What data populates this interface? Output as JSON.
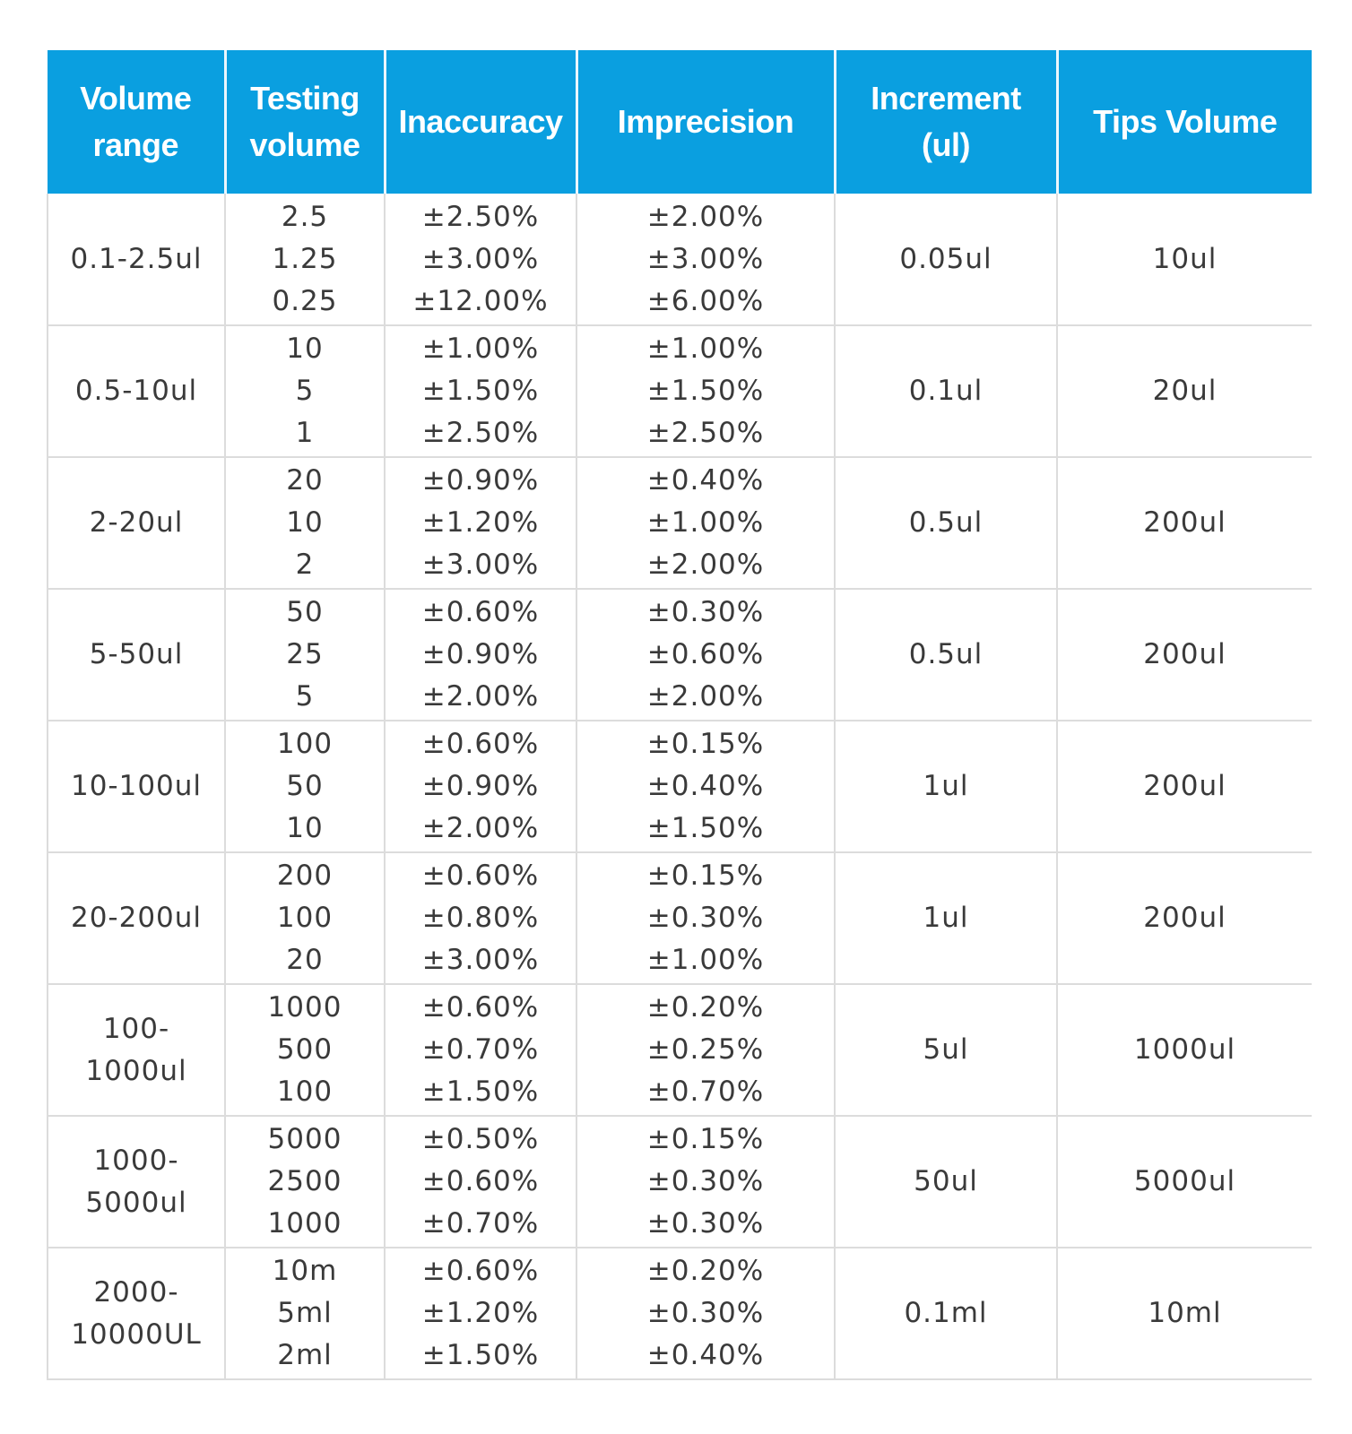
{
  "colors": {
    "header_bg": "#0a9fe0",
    "header_text": "#ffffff",
    "cell_text": "#3a3a3a",
    "grid_line": "#dcdcdc"
  },
  "headers": [
    [
      "Volume",
      "range"
    ],
    [
      "Testing",
      "volume"
    ],
    [
      "Inaccuracy"
    ],
    [
      "Imprecision"
    ],
    [
      "Increment",
      "(ul)"
    ],
    [
      "Tips Volume"
    ]
  ],
  "rows": [
    {
      "volume_range": [
        "0.1-2.5ul"
      ],
      "testing_volume": [
        "2.5",
        "1.25",
        "0.25"
      ],
      "inaccuracy": [
        "±2.50%",
        "±3.00%",
        "±12.00%"
      ],
      "imprecision": [
        "±2.00%",
        "±3.00%",
        "±6.00%"
      ],
      "increment": [
        "0.05ul"
      ],
      "tips_volume": [
        "10ul"
      ]
    },
    {
      "volume_range": [
        "0.5-10ul"
      ],
      "testing_volume": [
        "10",
        "5",
        "1"
      ],
      "inaccuracy": [
        "±1.00%",
        "±1.50%",
        "±2.50%"
      ],
      "imprecision": [
        "±1.00%",
        "±1.50%",
        "±2.50%"
      ],
      "increment": [
        "0.1ul"
      ],
      "tips_volume": [
        "20ul"
      ]
    },
    {
      "volume_range": [
        "2-20ul"
      ],
      "testing_volume": [
        "20",
        "10",
        "2"
      ],
      "inaccuracy": [
        "±0.90%",
        "±1.20%",
        "±3.00%"
      ],
      "imprecision": [
        "±0.40%",
        "±1.00%",
        "±2.00%"
      ],
      "increment": [
        "0.5ul"
      ],
      "tips_volume": [
        "200ul"
      ]
    },
    {
      "volume_range": [
        "5-50ul"
      ],
      "testing_volume": [
        "50",
        "25",
        "5"
      ],
      "inaccuracy": [
        "±0.60%",
        "±0.90%",
        "±2.00%"
      ],
      "imprecision": [
        "±0.30%",
        "±0.60%",
        "±2.00%"
      ],
      "increment": [
        "0.5ul"
      ],
      "tips_volume": [
        "200ul"
      ]
    },
    {
      "volume_range": [
        "10-100ul"
      ],
      "testing_volume": [
        "100",
        "50",
        "10"
      ],
      "inaccuracy": [
        "±0.60%",
        "±0.90%",
        "±2.00%"
      ],
      "imprecision": [
        "±0.15%",
        "±0.40%",
        "±1.50%"
      ],
      "increment": [
        "1ul"
      ],
      "tips_volume": [
        "200ul"
      ]
    },
    {
      "volume_range": [
        "20-200ul"
      ],
      "testing_volume": [
        "200",
        "100",
        "20"
      ],
      "inaccuracy": [
        "±0.60%",
        "±0.80%",
        "±3.00%"
      ],
      "imprecision": [
        "±0.15%",
        "±0.30%",
        "±1.00%"
      ],
      "increment": [
        "1ul"
      ],
      "tips_volume": [
        "200ul"
      ]
    },
    {
      "volume_range": [
        "100-",
        "1000ul"
      ],
      "testing_volume": [
        "1000",
        "500",
        "100"
      ],
      "inaccuracy": [
        "±0.60%",
        "±0.70%",
        "±1.50%"
      ],
      "imprecision": [
        "±0.20%",
        "±0.25%",
        "±0.70%"
      ],
      "increment": [
        "5ul"
      ],
      "tips_volume": [
        "1000ul"
      ]
    },
    {
      "volume_range": [
        "1000-",
        "5000ul"
      ],
      "testing_volume": [
        "5000",
        "2500",
        "1000"
      ],
      "inaccuracy": [
        "±0.50%",
        "±0.60%",
        "±0.70%"
      ],
      "imprecision": [
        "±0.15%",
        "±0.30%",
        "±0.30%"
      ],
      "increment": [
        "50ul"
      ],
      "tips_volume": [
        "5000ul"
      ]
    },
    {
      "volume_range": [
        "2000-",
        "10000UL"
      ],
      "testing_volume": [
        "10m",
        "5ml",
        "2ml"
      ],
      "inaccuracy": [
        "±0.60%",
        "±1.20%",
        "±1.50%"
      ],
      "imprecision": [
        "±0.20%",
        "±0.30%",
        "±0.40%"
      ],
      "increment": [
        "0.1ml"
      ],
      "tips_volume": [
        "10ml"
      ]
    }
  ]
}
